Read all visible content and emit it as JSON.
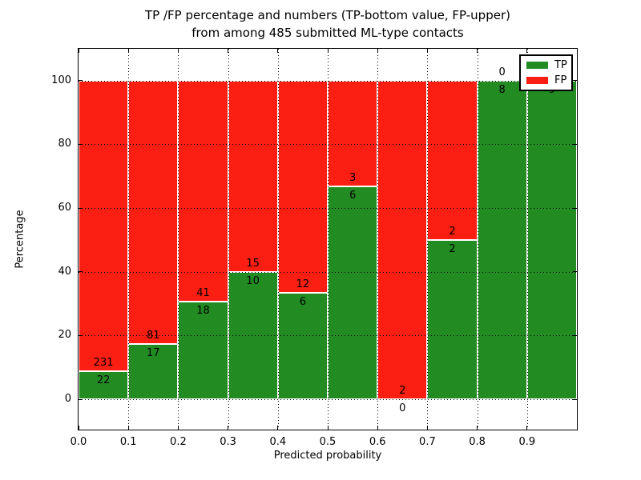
{
  "title": {
    "line1": "TP /FP percentage and numbers (TP-bottom value, FP-upper)",
    "line2": "from among 485 submitted ML-type contacts"
  },
  "axes": {
    "xlabel": "Predicted probability",
    "ylabel": "Percentage",
    "xtick_labels": [
      "0.0",
      "0.1",
      "0.2",
      "0.3",
      "0.4",
      "0.5",
      "0.6",
      "0.7",
      "0.8",
      "0.9"
    ],
    "ytick_labels": [
      "0",
      "20",
      "40",
      "60",
      "80",
      "100"
    ],
    "ytick_values": [
      0,
      20,
      40,
      60,
      80,
      100
    ],
    "grid": true
  },
  "legend": {
    "position": "upper-right",
    "entries": [
      {
        "label": "TP",
        "color": "#228b22"
      },
      {
        "label": "FP",
        "color": "#fb1e13"
      }
    ]
  },
  "colors": {
    "tp": "#228b22",
    "fp": "#fb1e13",
    "grid": "#000000",
    "background": "#ffffff"
  },
  "chart_data": {
    "type": "bar",
    "stacked": true,
    "normalized": "percent_of_bin_total",
    "title": "TP /FP percentage and numbers (TP-bottom value, FP-upper) from among 485 submitted ML-type contacts",
    "xlabel": "Predicted probability",
    "ylabel": "Percentage",
    "total_contacts": 485,
    "bin_width": 0.1,
    "bin_starts": [
      0.0,
      0.1,
      0.2,
      0.3,
      0.4,
      0.5,
      0.6,
      0.7,
      0.8,
      0.9
    ],
    "xlim": [
      0.0,
      1.0
    ],
    "ylim": [
      -10,
      110
    ],
    "series": [
      {
        "name": "TP",
        "color": "#228b22",
        "counts": [
          22,
          17,
          18,
          10,
          6,
          6,
          0,
          2,
          8,
          9
        ]
      },
      {
        "name": "FP",
        "color": "#fb1e13",
        "counts": [
          231,
          81,
          41,
          15,
          12,
          3,
          2,
          2,
          0,
          0
        ]
      }
    ],
    "tp_percent": [
      8.7,
      17.3,
      30.5,
      40.0,
      33.3,
      66.7,
      0.0,
      50.0,
      100.0,
      100.0
    ],
    "label_note": "TP count printed below segment boundary, FP count printed above it"
  }
}
